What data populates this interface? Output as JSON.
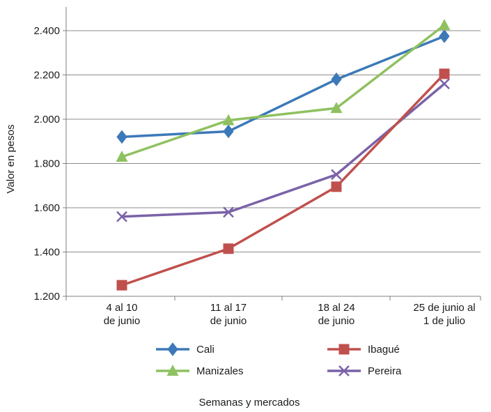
{
  "chart_data": {
    "type": "line",
    "title": "",
    "xlabel": "Semanas y mercados",
    "ylabel": "Valor en pesos",
    "ylim": [
      1200,
      2400
    ],
    "yticks": [
      1200,
      1400,
      1600,
      1800,
      2000,
      2200,
      2400
    ],
    "ytick_labels": [
      "1.200",
      "1.400",
      "1.600",
      "1.800",
      "2.000",
      "2.200",
      "2.400"
    ],
    "grid": true,
    "legend_position": "bottom",
    "categories": [
      [
        "4 al 10",
        "de junio"
      ],
      [
        "11 al 17",
        "de junio"
      ],
      [
        "18 al 24",
        "de junio"
      ],
      [
        "25 de junio al",
        "1 de julio"
      ]
    ],
    "series": [
      {
        "name": "Cali",
        "values": [
          1920,
          1945,
          2180,
          2375
        ],
        "color": "#3c79b8",
        "marker": "diamond"
      },
      {
        "name": "Ibagué",
        "values": [
          1250,
          1415,
          1695,
          2205
        ],
        "color": "#c0504d",
        "marker": "square"
      },
      {
        "name": "Manizales",
        "values": [
          1830,
          1995,
          2050,
          2425
        ],
        "color": "#8ec15f",
        "marker": "triangle"
      },
      {
        "name": "Pereira",
        "values": [
          1560,
          1580,
          1750,
          2160
        ],
        "color": "#7a62a8",
        "marker": "x"
      }
    ],
    "series_draw_order": [
      3,
      1,
      0,
      2
    ],
    "legend_order": [
      0,
      1,
      2,
      3
    ]
  }
}
